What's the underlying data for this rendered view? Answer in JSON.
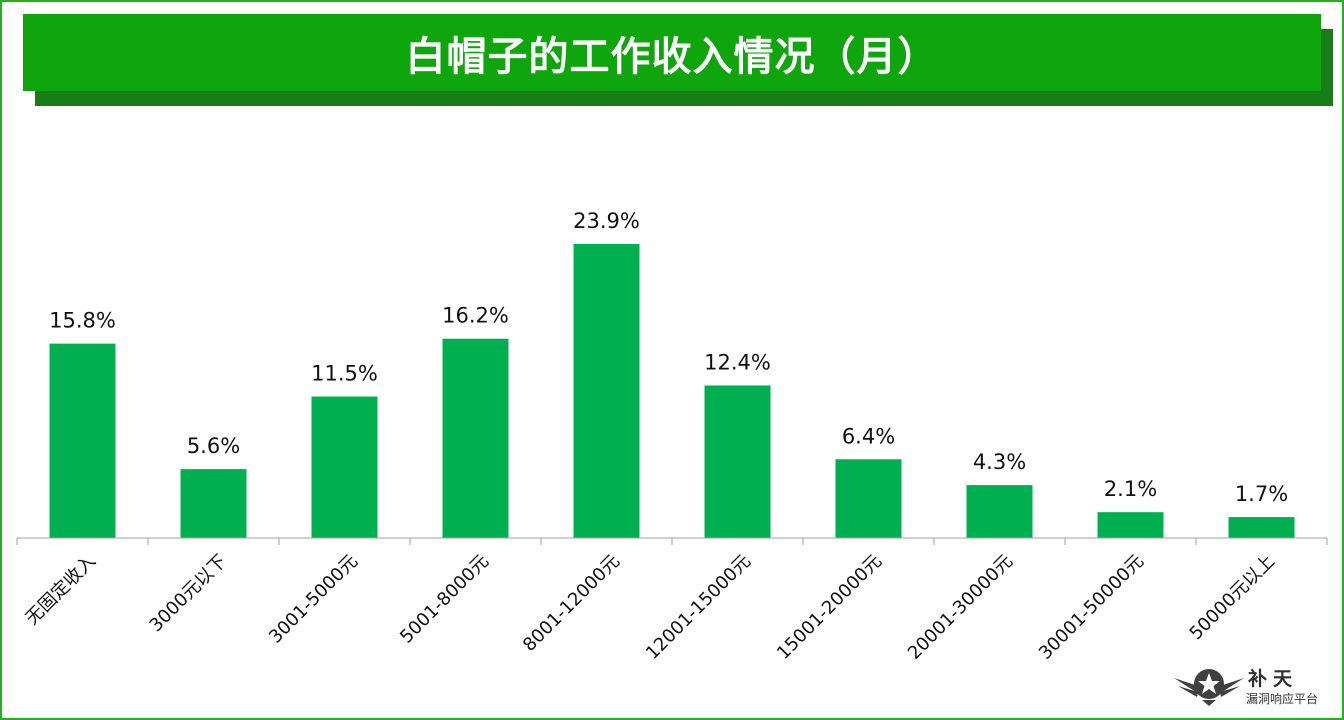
{
  "logo": {
    "main": "补天",
    "sub": "漏洞响应平台",
    "icon": "star-wings-icon"
  },
  "colors": {
    "bar": "#00b050",
    "title_bar": "#0fa50c",
    "title_shadow": "#197d17",
    "frame": "#22b21e"
  },
  "chart_data": {
    "type": "bar",
    "title": "白帽子的工作收入情况（月）",
    "categories": [
      "无固定收入",
      "3000元以下",
      "3001-5000元",
      "5001-8000元",
      "8001-12000元",
      "12001-15000元",
      "15001-20000元",
      "20001-30000元",
      "30001-50000元",
      "50000元以上"
    ],
    "values": [
      15.8,
      5.6,
      11.5,
      16.2,
      23.9,
      12.4,
      6.4,
      4.3,
      2.1,
      1.7
    ],
    "data_labels": [
      "15.8%",
      "5.6%",
      "11.5%",
      "16.2%",
      "23.9%",
      "12.4%",
      "6.4%",
      "4.3%",
      "2.1%",
      "1.7%"
    ],
    "unit": "%",
    "ylim": [
      0,
      30
    ],
    "grid": false,
    "legend": "none",
    "xlabel": "",
    "ylabel": ""
  }
}
